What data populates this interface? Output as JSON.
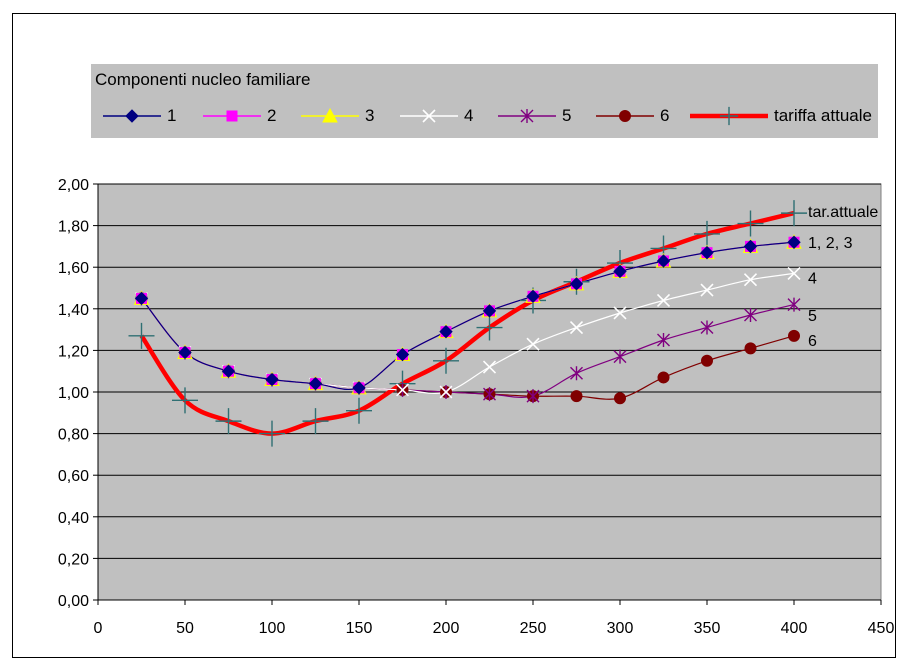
{
  "chart_data": {
    "type": "line",
    "legend_title": "Componenti nucleo familiare",
    "x": [
      25,
      50,
      75,
      100,
      125,
      150,
      175,
      200,
      225,
      250,
      275,
      300,
      325,
      350,
      375,
      400
    ],
    "xlim": [
      0,
      450
    ],
    "xticks": [
      "0",
      "50",
      "100",
      "150",
      "200",
      "250",
      "300",
      "350",
      "400",
      "450"
    ],
    "ylim": [
      0,
      2
    ],
    "yticks": [
      "0,00",
      "0,20",
      "0,40",
      "0,60",
      "0,80",
      "1,00",
      "1,20",
      "1,40",
      "1,60",
      "1,80",
      "2,00"
    ],
    "grid": true,
    "legend_position": "top",
    "plot_background": "#c0c0c0",
    "series": [
      {
        "name": "1",
        "color": "#000080",
        "marker": "diamond",
        "values": [
          1.45,
          1.19,
          1.1,
          1.06,
          1.04,
          1.02,
          1.18,
          1.29,
          1.39,
          1.46,
          1.52,
          1.58,
          1.63,
          1.67,
          1.7,
          1.72
        ]
      },
      {
        "name": "2",
        "color": "#ff00ff",
        "marker": "square",
        "values": [
          1.45,
          1.19,
          1.1,
          1.06,
          1.04,
          1.02,
          1.18,
          1.29,
          1.39,
          1.46,
          1.52,
          1.58,
          1.63,
          1.67,
          1.7,
          1.72
        ]
      },
      {
        "name": "3",
        "color": "#ffff00",
        "marker": "triangle",
        "values": [
          1.45,
          1.19,
          1.1,
          1.06,
          1.04,
          1.02,
          1.18,
          1.29,
          1.39,
          1.46,
          1.52,
          1.58,
          1.63,
          1.67,
          1.7,
          1.72
        ]
      },
      {
        "name": "4",
        "color": "#ffffff",
        "marker": "x",
        "values": [
          1.45,
          1.19,
          1.1,
          1.06,
          1.04,
          1.02,
          1.01,
          1.0,
          1.12,
          1.23,
          1.31,
          1.38,
          1.44,
          1.49,
          1.54,
          1.57
        ]
      },
      {
        "name": "5",
        "color": "#800080",
        "marker": "star",
        "values": [
          1.45,
          1.19,
          1.1,
          1.06,
          1.04,
          1.02,
          1.01,
          1.0,
          0.99,
          0.98,
          1.09,
          1.17,
          1.25,
          1.31,
          1.37,
          1.42
        ]
      },
      {
        "name": "6",
        "color": "#800000",
        "marker": "circle",
        "values": [
          1.45,
          1.19,
          1.1,
          1.06,
          1.04,
          1.02,
          1.01,
          1.0,
          0.99,
          0.98,
          0.98,
          0.97,
          1.07,
          1.15,
          1.21,
          1.27
        ]
      },
      {
        "name": "tariffa attuale",
        "color": "#ff0000",
        "marker": "plus",
        "values": [
          1.27,
          0.96,
          0.86,
          0.8,
          0.86,
          0.91,
          1.04,
          1.15,
          1.31,
          1.44,
          1.53,
          1.62,
          1.69,
          1.76,
          1.81,
          1.86
        ]
      }
    ],
    "end_labels": [
      {
        "text": "tar.attuale",
        "y": 1.87
      },
      {
        "text": "1, 2, 3",
        "y": 1.72
      },
      {
        "text": "4",
        "y": 1.55
      },
      {
        "text": "5",
        "y": 1.37
      },
      {
        "text": "6",
        "y": 1.25
      }
    ]
  }
}
